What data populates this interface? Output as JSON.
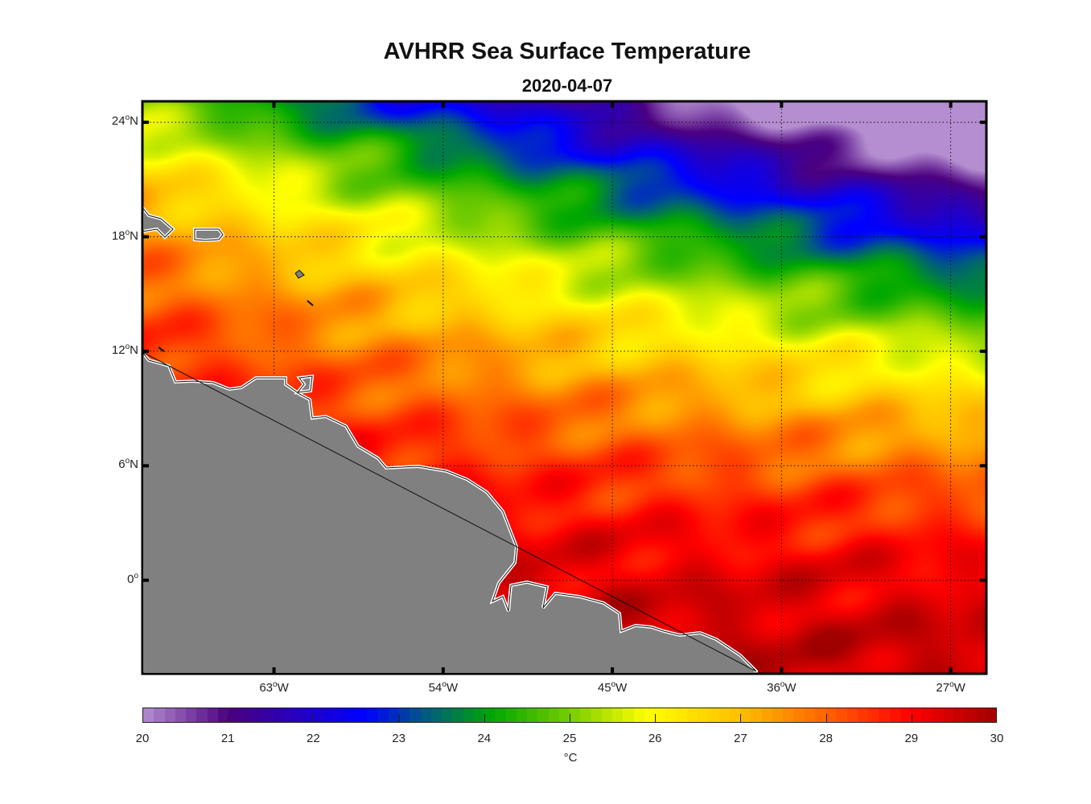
{
  "chart_data": {
    "type": "heatmap",
    "title": "AVHRR Sea Surface Temperature",
    "subtitle": "2020-04-07",
    "lat_ticks": [
      {
        "value": 24,
        "label": "24",
        "hemi": "N"
      },
      {
        "value": 18,
        "label": "18",
        "hemi": "N"
      },
      {
        "value": 12,
        "label": "12",
        "hemi": "N"
      },
      {
        "value": 6,
        "label": "6",
        "hemi": "N"
      },
      {
        "value": 0,
        "label": "0",
        "hemi": ""
      }
    ],
    "lon_ticks": [
      {
        "value": -63,
        "label": "63",
        "hemi": "W"
      },
      {
        "value": -54,
        "label": "54",
        "hemi": "W"
      },
      {
        "value": -45,
        "label": "45",
        "hemi": "W"
      },
      {
        "value": -36,
        "label": "36",
        "hemi": "W"
      },
      {
        "value": -27,
        "label": "27",
        "hemi": "W"
      }
    ],
    "lat_range": [
      -4.9,
      25.1
    ],
    "lon_range": [
      -70,
      -25.1
    ],
    "colorbar": {
      "range": [
        20,
        30
      ],
      "ticks": [
        "20",
        "21",
        "22",
        "23",
        "24",
        "25",
        "26",
        "27",
        "28",
        "29",
        "30"
      ],
      "unit": "°C"
    },
    "regions_approx_sst": [
      {
        "region": "equatorial south",
        "value": 29.5
      },
      {
        "region": "western Caribbean/Atlantic 12-18N",
        "value": 27.3
      },
      {
        "region": "north-central 24N",
        "value": 24.5
      },
      {
        "region": "north-east 18-22N 27-33W",
        "value": 22.5
      }
    ],
    "land_color": "#808080",
    "grid": "dotted"
  }
}
